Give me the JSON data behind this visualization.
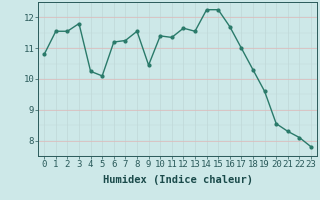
{
  "x": [
    0,
    1,
    2,
    3,
    4,
    5,
    6,
    7,
    8,
    9,
    10,
    11,
    12,
    13,
    14,
    15,
    16,
    17,
    18,
    19,
    20,
    21,
    22,
    23
  ],
  "y": [
    10.8,
    11.55,
    11.55,
    11.8,
    10.25,
    10.1,
    11.2,
    11.25,
    11.55,
    10.45,
    11.4,
    11.35,
    11.65,
    11.55,
    12.25,
    12.25,
    11.7,
    11.0,
    10.3,
    9.6,
    8.55,
    8.3,
    8.1,
    7.8
  ],
  "line_color": "#2a7a6a",
  "marker": "o",
  "markersize": 2.0,
  "linewidth": 1.0,
  "xlabel": "Humidex (Indice chaleur)",
  "xlim": [
    -0.5,
    23.5
  ],
  "ylim": [
    7.5,
    12.5
  ],
  "yticks": [
    8,
    9,
    10,
    11,
    12
  ],
  "xticks": [
    0,
    1,
    2,
    3,
    4,
    5,
    6,
    7,
    8,
    9,
    10,
    11,
    12,
    13,
    14,
    15,
    16,
    17,
    18,
    19,
    20,
    21,
    22,
    23
  ],
  "bg_color": "#cde8e8",
  "grid_color_v": "#c0d8d8",
  "grid_color_h": "#e8b0b0",
  "tick_color": "#2a5a5a",
  "label_color": "#1a4a4a",
  "xlabel_fontsize": 7.5,
  "tick_fontsize": 6.5
}
